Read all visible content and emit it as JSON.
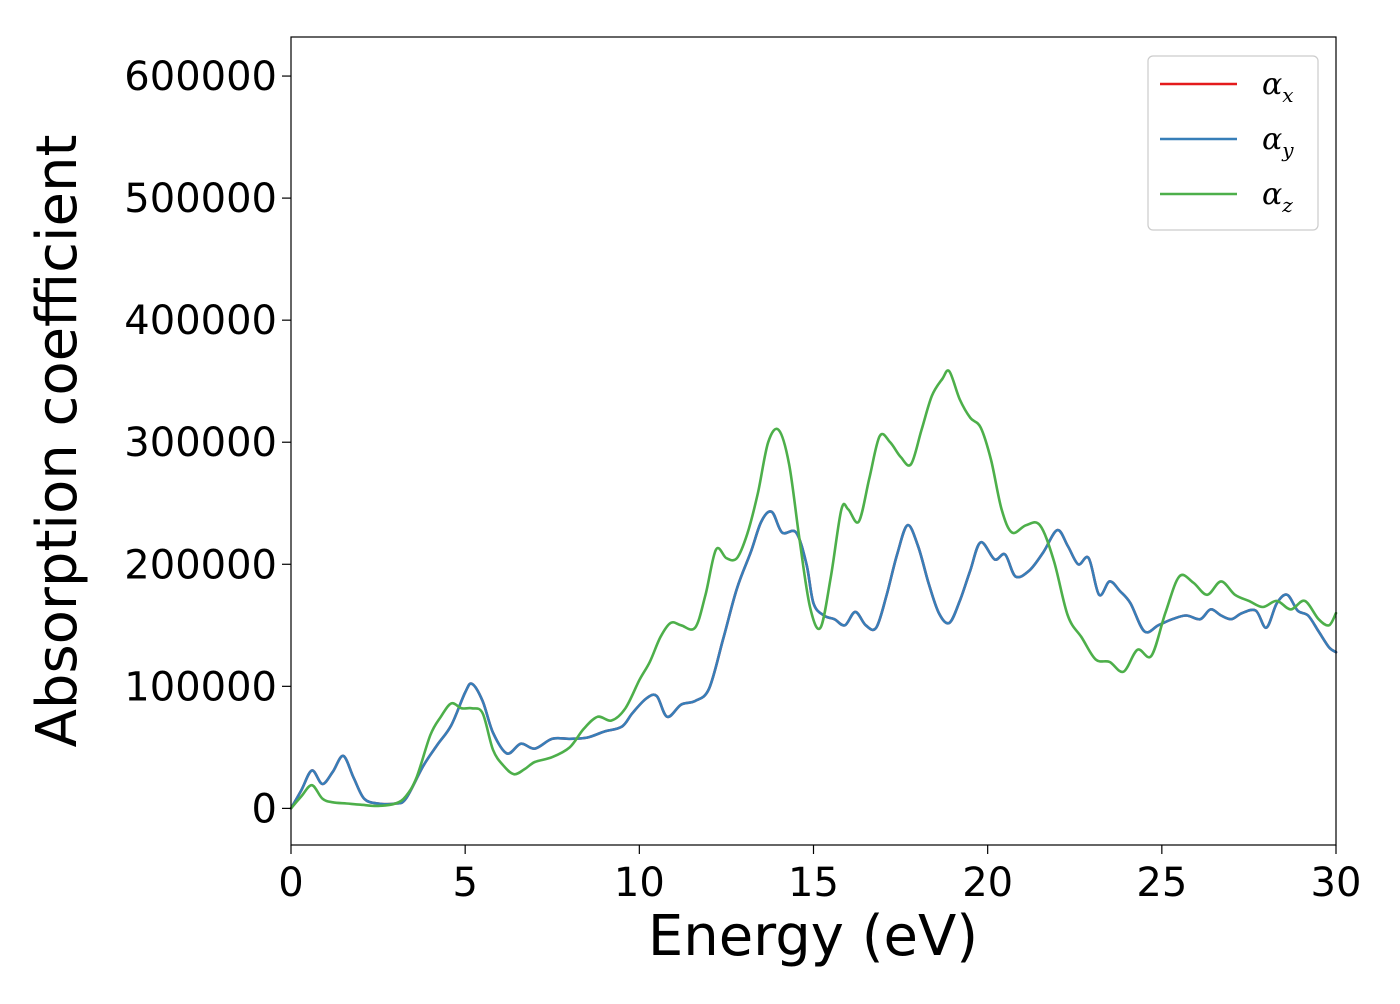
{
  "chart_data": {
    "type": "line",
    "title": "",
    "xlabel": "Energy (eV)",
    "ylabel": "Absorption coefficient",
    "xlim": [
      0,
      30
    ],
    "ylim": [
      -30000,
      632000
    ],
    "xticks": [
      0,
      5,
      10,
      15,
      20,
      25,
      30
    ],
    "yticks": [
      0,
      100000,
      200000,
      300000,
      400000,
      500000,
      600000
    ],
    "grid": false,
    "legend_position": "top-right",
    "series": [
      {
        "name": "α",
        "subscript": "x",
        "color": "#e41a1c",
        "x": [
          0,
          0.3,
          0.6,
          0.9,
          1.2,
          1.5,
          1.8,
          2.1,
          2.5,
          3.0,
          3.3,
          3.8,
          4.2,
          4.6,
          5.0,
          5.2,
          5.5,
          5.8,
          6.2,
          6.6,
          7.0,
          7.5,
          8.0,
          8.5,
          9.0,
          9.5,
          9.8,
          10.2,
          10.5,
          10.8,
          11.2,
          11.6,
          12.0,
          12.4,
          12.8,
          13.2,
          13.5,
          13.8,
          14.1,
          14.5,
          14.8,
          15.0,
          15.3,
          15.6,
          15.9,
          16.2,
          16.5,
          16.8,
          17.1,
          17.4,
          17.7,
          18.0,
          18.3,
          18.6,
          18.9,
          19.2,
          19.5,
          19.8,
          20.2,
          20.5,
          20.8,
          21.2,
          21.6,
          22.0,
          22.3,
          22.6,
          22.9,
          23.2,
          23.5,
          23.8,
          24.1,
          24.5,
          24.9,
          25.3,
          25.7,
          26.1,
          26.4,
          26.7,
          27.0,
          27.3,
          27.7,
          28.0,
          28.3,
          28.6,
          28.9,
          29.2,
          29.5,
          29.8,
          30.0
        ],
        "values": [
          0,
          15000,
          31000,
          20000,
          30000,
          43000,
          25000,
          8000,
          4000,
          4000,
          8000,
          35000,
          52000,
          68000,
          95000,
          102000,
          88000,
          62000,
          45000,
          53000,
          49000,
          57000,
          57000,
          58000,
          63000,
          67000,
          78000,
          90000,
          92000,
          75000,
          85000,
          88000,
          98000,
          138000,
          180000,
          210000,
          235000,
          243000,
          226000,
          226000,
          200000,
          168000,
          158000,
          155000,
          150000,
          161000,
          150000,
          148000,
          175000,
          208000,
          232000,
          215000,
          185000,
          160000,
          152000,
          170000,
          195000,
          218000,
          204000,
          208000,
          190000,
          195000,
          210000,
          228000,
          215000,
          200000,
          205000,
          175000,
          186000,
          178000,
          168000,
          145000,
          150000,
          155000,
          158000,
          155000,
          163000,
          158000,
          155000,
          160000,
          162000,
          148000,
          168000,
          175000,
          162000,
          158000,
          145000,
          132000,
          128000
        ]
      },
      {
        "name": "α",
        "subscript": "y",
        "color": "#377eb8",
        "x": [
          0,
          0.3,
          0.6,
          0.9,
          1.2,
          1.5,
          1.8,
          2.1,
          2.5,
          3.0,
          3.3,
          3.8,
          4.2,
          4.6,
          5.0,
          5.2,
          5.5,
          5.8,
          6.2,
          6.6,
          7.0,
          7.5,
          8.0,
          8.5,
          9.0,
          9.5,
          9.8,
          10.2,
          10.5,
          10.8,
          11.2,
          11.6,
          12.0,
          12.4,
          12.8,
          13.2,
          13.5,
          13.8,
          14.1,
          14.5,
          14.8,
          15.0,
          15.3,
          15.6,
          15.9,
          16.2,
          16.5,
          16.8,
          17.1,
          17.4,
          17.7,
          18.0,
          18.3,
          18.6,
          18.9,
          19.2,
          19.5,
          19.8,
          20.2,
          20.5,
          20.8,
          21.2,
          21.6,
          22.0,
          22.3,
          22.6,
          22.9,
          23.2,
          23.5,
          23.8,
          24.1,
          24.5,
          24.9,
          25.3,
          25.7,
          26.1,
          26.4,
          26.7,
          27.0,
          27.3,
          27.7,
          28.0,
          28.3,
          28.6,
          28.9,
          29.2,
          29.5,
          29.8,
          30.0
        ],
        "values": [
          0,
          15000,
          31000,
          20000,
          30000,
          43000,
          25000,
          8000,
          4000,
          4000,
          8000,
          35000,
          52000,
          68000,
          95000,
          102000,
          88000,
          62000,
          45000,
          53000,
          49000,
          57000,
          57000,
          58000,
          63000,
          67000,
          78000,
          90000,
          92000,
          75000,
          85000,
          88000,
          98000,
          138000,
          180000,
          210000,
          235000,
          243000,
          226000,
          226000,
          200000,
          168000,
          158000,
          155000,
          150000,
          161000,
          150000,
          148000,
          175000,
          208000,
          232000,
          215000,
          185000,
          160000,
          152000,
          170000,
          195000,
          218000,
          204000,
          208000,
          190000,
          195000,
          210000,
          228000,
          215000,
          200000,
          205000,
          175000,
          186000,
          178000,
          168000,
          145000,
          150000,
          155000,
          158000,
          155000,
          163000,
          158000,
          155000,
          160000,
          162000,
          148000,
          168000,
          175000,
          162000,
          158000,
          145000,
          132000,
          128000
        ]
      },
      {
        "name": "α",
        "subscript": "z",
        "color": "#4daf4a",
        "x": [
          0,
          0.3,
          0.6,
          0.9,
          1.2,
          1.6,
          2.0,
          2.5,
          3.0,
          3.3,
          3.6,
          4.0,
          4.3,
          4.6,
          4.9,
          5.2,
          5.5,
          5.8,
          6.1,
          6.4,
          6.7,
          7.0,
          7.5,
          8.0,
          8.4,
          8.8,
          9.2,
          9.6,
          10.0,
          10.3,
          10.6,
          10.9,
          11.2,
          11.6,
          11.9,
          12.2,
          12.5,
          12.8,
          13.1,
          13.4,
          13.7,
          14.0,
          14.3,
          14.6,
          14.9,
          15.2,
          15.5,
          15.8,
          16.0,
          16.3,
          16.6,
          16.9,
          17.2,
          17.5,
          17.8,
          18.1,
          18.4,
          18.7,
          18.9,
          19.2,
          19.5,
          19.8,
          20.1,
          20.4,
          20.7,
          21.1,
          21.5,
          21.9,
          22.3,
          22.7,
          23.1,
          23.5,
          23.9,
          24.3,
          24.7,
          25.1,
          25.5,
          25.9,
          26.3,
          26.7,
          27.1,
          27.5,
          27.9,
          28.3,
          28.7,
          29.1,
          29.5,
          29.8,
          30.0
        ],
        "values": [
          0,
          10000,
          19000,
          8000,
          5000,
          4000,
          3000,
          2000,
          4000,
          10000,
          25000,
          60000,
          75000,
          86000,
          82000,
          82000,
          78000,
          48000,
          35000,
          28000,
          32000,
          38000,
          42000,
          50000,
          65000,
          75000,
          72000,
          82000,
          105000,
          120000,
          140000,
          152000,
          150000,
          148000,
          175000,
          212000,
          205000,
          205000,
          225000,
          258000,
          300000,
          310000,
          282000,
          220000,
          165000,
          148000,
          190000,
          245000,
          245000,
          235000,
          270000,
          305000,
          300000,
          288000,
          282000,
          310000,
          338000,
          352000,
          358000,
          335000,
          320000,
          312000,
          285000,
          245000,
          226000,
          232000,
          232000,
          203000,
          158000,
          140000,
          122000,
          120000,
          112000,
          130000,
          125000,
          160000,
          190000,
          185000,
          175000,
          186000,
          175000,
          170000,
          165000,
          170000,
          163000,
          170000,
          155000,
          150000,
          160000
        ]
      }
    ]
  }
}
